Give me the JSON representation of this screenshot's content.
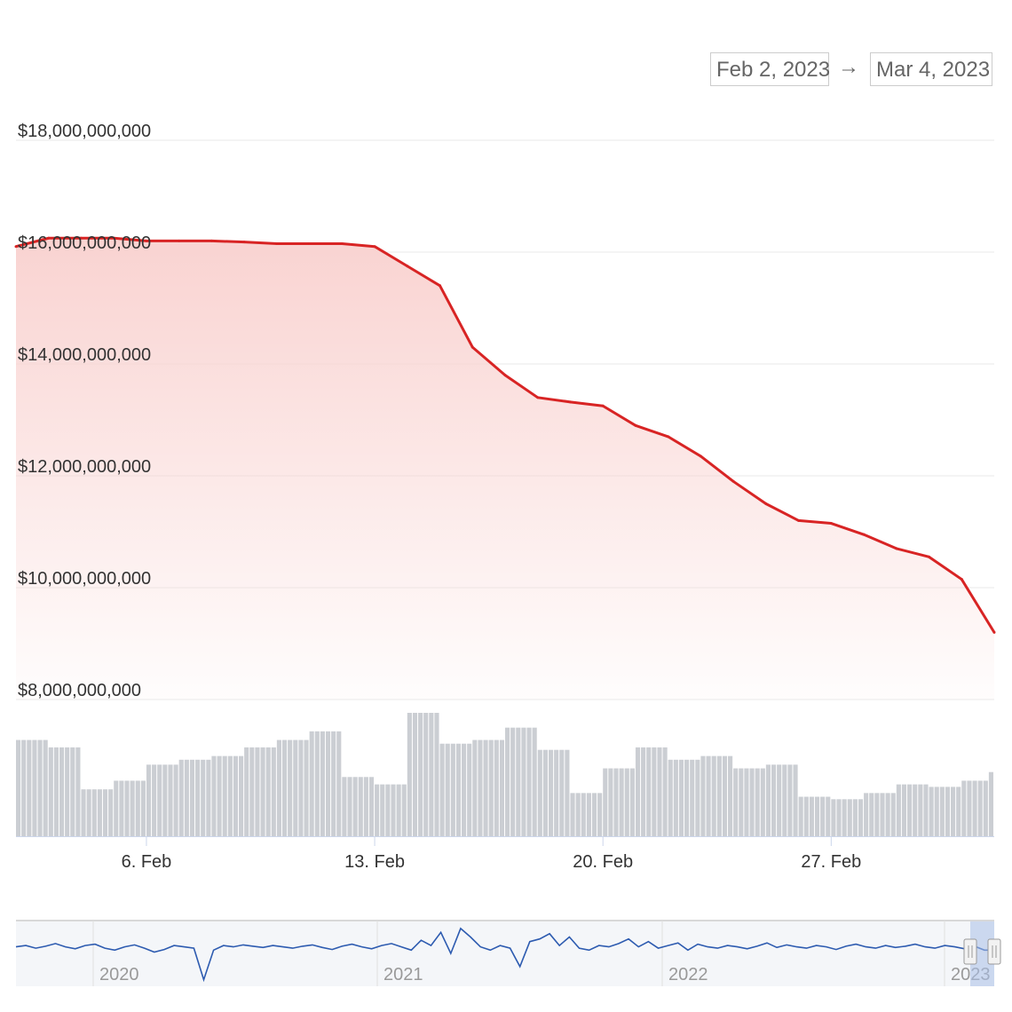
{
  "range_selector": {
    "from": "Feb 2, 2023",
    "arrow": "→",
    "to": "Mar 4, 2023"
  },
  "colors": {
    "line": "#d82424",
    "area_top": "#f9d3d1",
    "volume": "#b9bdc4",
    "navigator": "#2d5bb0"
  },
  "chart_data": {
    "type": "line",
    "title": "",
    "xlabel": "",
    "ylabel": "",
    "ylim": [
      8000000000,
      18000000000
    ],
    "y_ticks": [
      8000000000,
      10000000000,
      12000000000,
      14000000000,
      16000000000,
      18000000000
    ],
    "y_tick_labels": [
      "$8,000,000,000",
      "$10,000,000,000",
      "$12,000,000,000",
      "$14,000,000,000",
      "$16,000,000,000",
      "$18,000,000,000"
    ],
    "x_range": [
      "2023-02-02",
      "2023-03-04"
    ],
    "x_ticks": [
      "2023-02-06",
      "2023-02-13",
      "2023-02-20",
      "2023-02-27"
    ],
    "x_tick_labels": [
      "6. Feb",
      "13. Feb",
      "20. Feb",
      "27. Feb"
    ],
    "series": [
      {
        "x": [
          "2023-02-02",
          "2023-02-03",
          "2023-02-04",
          "2023-02-05",
          "2023-02-06",
          "2023-02-07",
          "2023-02-08",
          "2023-02-09",
          "2023-02-10",
          "2023-02-11",
          "2023-02-12",
          "2023-02-13",
          "2023-02-14",
          "2023-02-15",
          "2023-02-16",
          "2023-02-17",
          "2023-02-18",
          "2023-02-19",
          "2023-02-20",
          "2023-02-21",
          "2023-02-22",
          "2023-02-23",
          "2023-02-24",
          "2023-02-25",
          "2023-02-26",
          "2023-02-27",
          "2023-02-28",
          "2023-03-01",
          "2023-03-02",
          "2023-03-03",
          "2023-03-04"
        ],
        "y": [
          16100000000,
          16250000000,
          16250000000,
          16250000000,
          16200000000,
          16200000000,
          16200000000,
          16180000000,
          16150000000,
          16150000000,
          16150000000,
          16100000000,
          15750000000,
          15400000000,
          14300000000,
          13800000000,
          13400000000,
          13320000000,
          13250000000,
          12900000000,
          12700000000,
          12350000000,
          11900000000,
          11500000000,
          11200000000,
          11150000000,
          10950000000,
          10700000000,
          10550000000,
          10150000000,
          9200000000
        ]
      }
    ],
    "volume": {
      "x": [
        "2023-02-02",
        "2023-02-03",
        "2023-02-04",
        "2023-02-05",
        "2023-02-06",
        "2023-02-07",
        "2023-02-08",
        "2023-02-09",
        "2023-02-10",
        "2023-02-11",
        "2023-02-12",
        "2023-02-13",
        "2023-02-14",
        "2023-02-15",
        "2023-02-16",
        "2023-02-17",
        "2023-02-18",
        "2023-02-19",
        "2023-02-20",
        "2023-02-21",
        "2023-02-22",
        "2023-02-23",
        "2023-02-24",
        "2023-02-25",
        "2023-02-26",
        "2023-02-27",
        "2023-02-28",
        "2023-03-01",
        "2023-03-02",
        "2023-03-03",
        "2023-03-04"
      ],
      "values": [
        0.78,
        0.72,
        0.38,
        0.45,
        0.58,
        0.62,
        0.65,
        0.72,
        0.78,
        0.85,
        0.48,
        0.42,
        1.0,
        0.75,
        0.78,
        0.88,
        0.7,
        0.35,
        0.55,
        0.72,
        0.62,
        0.65,
        0.55,
        0.58,
        0.32,
        0.3,
        0.35,
        0.42,
        0.4,
        0.45,
        0.52
      ]
    },
    "navigator": {
      "x_tick_labels": [
        "2020",
        "2021",
        "2022",
        "2023"
      ],
      "values": [
        0.6,
        0.62,
        0.58,
        0.61,
        0.65,
        0.6,
        0.57,
        0.62,
        0.64,
        0.58,
        0.55,
        0.6,
        0.63,
        0.58,
        0.52,
        0.56,
        0.62,
        0.6,
        0.58,
        0.1,
        0.55,
        0.62,
        0.6,
        0.63,
        0.61,
        0.59,
        0.62,
        0.6,
        0.58,
        0.61,
        0.63,
        0.59,
        0.56,
        0.61,
        0.64,
        0.6,
        0.57,
        0.62,
        0.65,
        0.6,
        0.55,
        0.7,
        0.62,
        0.82,
        0.5,
        0.88,
        0.75,
        0.6,
        0.55,
        0.62,
        0.58,
        0.3,
        0.68,
        0.72,
        0.8,
        0.62,
        0.75,
        0.58,
        0.55,
        0.62,
        0.6,
        0.65,
        0.72,
        0.6,
        0.68,
        0.58,
        0.62,
        0.66,
        0.55,
        0.64,
        0.6,
        0.58,
        0.62,
        0.6,
        0.57,
        0.61,
        0.66,
        0.59,
        0.63,
        0.6,
        0.58,
        0.62,
        0.6,
        0.56,
        0.61,
        0.64,
        0.6,
        0.58,
        0.62,
        0.59,
        0.61,
        0.64,
        0.6,
        0.58,
        0.62,
        0.6,
        0.57,
        0.61,
        0.55,
        0.55
      ]
    }
  }
}
